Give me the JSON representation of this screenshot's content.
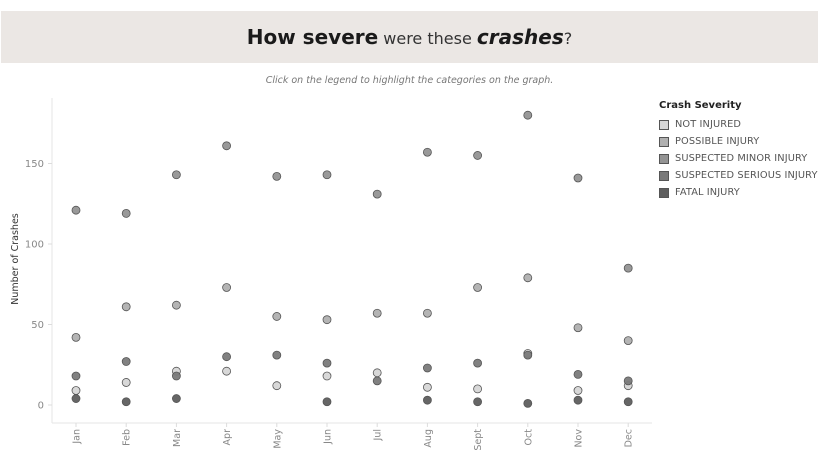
{
  "header": {
    "title_part1": "How severe",
    "title_part2": " were these ",
    "title_part3": "crashes",
    "title_part4": "?",
    "subtitle": "Click on the legend to highlight the categories on the graph."
  },
  "legend": {
    "title": "Crash Severity"
  },
  "chart_data": {
    "type": "scatter",
    "ylabel": "Number of Crashes",
    "xlabel": "",
    "ylim": [
      -12,
      192
    ],
    "yticks": [
      0,
      50,
      100,
      150
    ],
    "grid": false,
    "legend_position": "right",
    "categories": [
      "Jan",
      "Feb",
      "Mar",
      "Apr",
      "May",
      "Jun",
      "Jul",
      "Aug",
      "Sept",
      "Oct",
      "Nov",
      "Dec"
    ],
    "series": [
      {
        "name": "NOT INJURED",
        "color": "#d6d6d6",
        "values": [
          9,
          14,
          21,
          21,
          12,
          18,
          20,
          11,
          10,
          32,
          9,
          12
        ]
      },
      {
        "name": "POSSIBLE INJURY",
        "color": "#b0b0b0",
        "values": [
          42,
          61,
          62,
          73,
          55,
          53,
          57,
          57,
          73,
          79,
          48,
          40
        ]
      },
      {
        "name": "SUSPECTED MINOR INJURY",
        "color": "#949494",
        "values": [
          121,
          119,
          143,
          161,
          142,
          143,
          131,
          157,
          155,
          180,
          141,
          85
        ]
      },
      {
        "name": "SUSPECTED SERIOUS INJURY",
        "color": "#7a7a7a",
        "values": [
          18,
          27,
          18,
          30,
          31,
          26,
          15,
          23,
          26,
          31,
          19,
          15
        ]
      },
      {
        "name": "FATAL INJURY",
        "color": "#5e5e5e",
        "values": [
          4,
          2,
          4,
          null,
          null,
          2,
          null,
          3,
          2,
          1,
          3,
          2
        ]
      }
    ]
  }
}
